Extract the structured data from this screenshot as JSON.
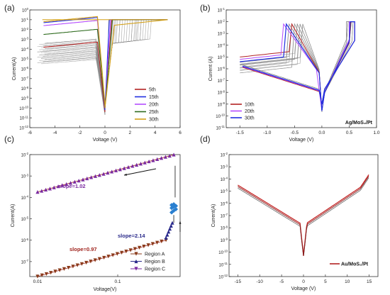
{
  "panels": {
    "a": {
      "label": "(a)"
    },
    "b": {
      "label": "(b)"
    },
    "c": {
      "label": "(c)"
    },
    "d": {
      "label": "(d)"
    }
  },
  "colors": {
    "gray": "#8c8c8c",
    "red": "#b22222",
    "blue": "#1f2fe0",
    "purple": "#b44cff",
    "green": "#2e6b1e",
    "orange": "#d4a017",
    "darkred": "#a0241e",
    "brown": "#8a3a1a",
    "navy": "#2a2a8a",
    "violet": "#7a2aa0"
  },
  "chart_data": [
    {
      "panel": "a",
      "type": "line",
      "xlabel": "Voltage (V)",
      "ylabel": "Current(A)",
      "x_ticks": [
        "-6",
        "-4",
        "-2",
        "0",
        "2",
        "4",
        "6"
      ],
      "y_ticks": [
        "10^-12",
        "10^-11",
        "10^-10",
        "10^-9",
        "10^-8",
        "10^-7",
        "10^-6",
        "10^-5",
        "10^-4",
        "10^-3",
        "10^-2",
        "10^-1",
        "10^0"
      ],
      "xlim": [
        -6,
        6
      ],
      "ylim": [
        -12,
        0
      ],
      "y_scale": "log",
      "grid": false,
      "legend_position": "bottom-right",
      "series": [
        {
          "name": "5th",
          "color": "#b22222"
        },
        {
          "name": "15th",
          "color": "#1f2fe0"
        },
        {
          "name": "20th",
          "color": "#b44cff"
        },
        {
          "name": "25th",
          "color": "#2e6b1e"
        },
        {
          "name": "30th",
          "color": "#d4a017"
        }
      ]
    },
    {
      "panel": "b",
      "type": "line",
      "xlabel": "Voltage (V)",
      "ylabel": "Current (A)",
      "x_ticks": [
        "-1.5",
        "-1.0",
        "-0.5",
        "0.0",
        "0.5",
        "1.0"
      ],
      "y_ticks": [
        "10^-11",
        "10^-10",
        "10^-9",
        "10^-8",
        "10^-7",
        "10^-6",
        "10^-5",
        "10^-4",
        "10^-3",
        "10^-2",
        "10^-1"
      ],
      "xlim": [
        -1.75,
        1.0
      ],
      "ylim": [
        -11,
        -1
      ],
      "y_scale": "log",
      "grid": false,
      "legend_position": "bottom-left",
      "annotation": "Ag/MoS₂/Pt",
      "series": [
        {
          "name": "10th",
          "color": "#b22222"
        },
        {
          "name": "20th",
          "color": "#b44cff"
        },
        {
          "name": "30th",
          "color": "#1f2fe0"
        }
      ]
    },
    {
      "panel": "c",
      "type": "scatter",
      "xlabel": "Voltage(V)",
      "ylabel": "Current(A)",
      "x_ticks": [
        "0.01",
        "0.1"
      ],
      "y_ticks": [
        "10^-7",
        "10^-6",
        "10^-5",
        "10^-4",
        "10^-3",
        "10^-2"
      ],
      "x_scale": "log",
      "y_scale": "log",
      "xlim": [
        0.008,
        0.6
      ],
      "ylim": [
        -7.7,
        -2
      ],
      "grid": false,
      "legend_position": "bottom-right",
      "annotations": [
        {
          "text": "slope=1.02",
          "color": "#7a2aa0"
        },
        {
          "text": "slope=2.14",
          "color": "#2a2a8a"
        },
        {
          "text": "slope=0.97",
          "color": "#a0241e"
        }
      ],
      "series": [
        {
          "name": "Region A",
          "color": "#8a3a1a",
          "x": [
            0.01,
            0.02,
            0.05,
            0.1,
            0.2,
            0.3,
            0.4
          ],
          "y": [
            2e-08,
            3.5e-08,
            8e-08,
            1.6e-07,
            3.5e-07,
            6e-07,
            1e-06
          ]
        },
        {
          "name": "Region B",
          "color": "#2a2a8a",
          "x": [
            0.4,
            0.42,
            0.44,
            0.46,
            0.48
          ],
          "y": [
            1.3e-06,
            2e-06,
            3e-06,
            4.5e-06,
            6.5e-06
          ]
        },
        {
          "name": "Region C",
          "color": "#7a2aa0",
          "x": [
            0.01,
            0.02,
            0.05,
            0.1,
            0.2,
            0.3,
            0.5
          ],
          "y": [
            0.00018,
            0.0004,
            0.001,
            0.002,
            0.004,
            0.006,
            0.01
          ]
        }
      ]
    },
    {
      "panel": "d",
      "type": "line",
      "xlabel": "Voltage (V)",
      "ylabel": "Current(A)",
      "x_ticks": [
        "-15",
        "-10",
        "-5",
        "0",
        "5",
        "10",
        "15"
      ],
      "y_ticks": [
        "10^-12",
        "10^-11",
        "10^-10",
        "10^-9",
        "10^-8",
        "10^-7",
        "10^-6",
        "10^-5",
        "10^-4",
        "10^-3",
        "10^-2"
      ],
      "xlim": [
        -17,
        17
      ],
      "ylim": [
        -12,
        -2
      ],
      "y_scale": "log",
      "grid": false,
      "legend_position": "bottom-right",
      "series": [
        {
          "name": "Au/MoS₂/Pt",
          "color": "#b22222"
        }
      ]
    }
  ]
}
